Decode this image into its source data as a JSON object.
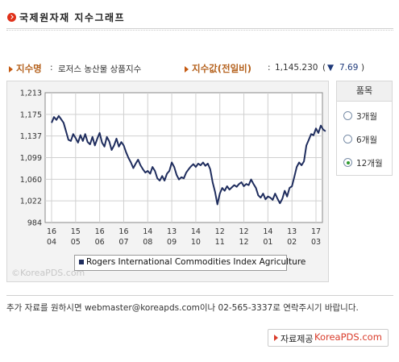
{
  "header": {
    "title": "국제원자재 지수그래프"
  },
  "info": {
    "index_name_label": "지수명",
    "index_name_value": "로저스 농산물 상품지수",
    "index_value_label": "지수값(전일비)",
    "index_value": "1,145.230",
    "change_open": "(",
    "change_arrow": "▼",
    "change_value": "7.69",
    "change_close": ")"
  },
  "chart_data": {
    "type": "line",
    "title": "",
    "xlabel": "",
    "ylabel": "",
    "ylim": [
      984,
      1213
    ],
    "y_ticks": [
      "1,213",
      "1,175",
      "1,137",
      "1,099",
      "1,060",
      "1,022",
      "984"
    ],
    "x_ticks": [
      {
        "day": "16",
        "month": "04"
      },
      {
        "day": "15",
        "month": "05"
      },
      {
        "day": "16",
        "month": "06"
      },
      {
        "day": "16",
        "month": "07"
      },
      {
        "day": "14",
        "month": "08"
      },
      {
        "day": "13",
        "month": "09"
      },
      {
        "day": "14",
        "month": "10"
      },
      {
        "day": "12",
        "month": "11"
      },
      {
        "day": "12",
        "month": "12"
      },
      {
        "day": "14",
        "month": "01"
      },
      {
        "day": "13",
        "month": "02"
      },
      {
        "day": "17",
        "month": "03"
      }
    ],
    "grid": true,
    "legend_position": "bottom",
    "series": [
      {
        "name": "Rogers International Commodities Index Agriculture",
        "color": "#1f2d5e",
        "points": [
          [
            0.0,
            1160
          ],
          [
            0.1,
            1170
          ],
          [
            0.2,
            1165
          ],
          [
            0.3,
            1172
          ],
          [
            0.4,
            1166
          ],
          [
            0.5,
            1160
          ],
          [
            0.6,
            1145
          ],
          [
            0.7,
            1130
          ],
          [
            0.8,
            1128
          ],
          [
            0.9,
            1140
          ],
          [
            1.0,
            1133
          ],
          [
            1.1,
            1125
          ],
          [
            1.2,
            1138
          ],
          [
            1.3,
            1128
          ],
          [
            1.4,
            1140
          ],
          [
            1.5,
            1126
          ],
          [
            1.6,
            1122
          ],
          [
            1.7,
            1135
          ],
          [
            1.8,
            1120
          ],
          [
            1.9,
            1132
          ],
          [
            2.0,
            1142
          ],
          [
            2.1,
            1125
          ],
          [
            2.2,
            1118
          ],
          [
            2.3,
            1135
          ],
          [
            2.4,
            1127
          ],
          [
            2.5,
            1112
          ],
          [
            2.6,
            1120
          ],
          [
            2.7,
            1132
          ],
          [
            2.8,
            1118
          ],
          [
            2.9,
            1126
          ],
          [
            3.0,
            1120
          ],
          [
            3.1,
            1108
          ],
          [
            3.2,
            1098
          ],
          [
            3.3,
            1090
          ],
          [
            3.4,
            1080
          ],
          [
            3.5,
            1088
          ],
          [
            3.6,
            1095
          ],
          [
            3.7,
            1085
          ],
          [
            3.8,
            1078
          ],
          [
            3.9,
            1072
          ],
          [
            4.0,
            1075
          ],
          [
            4.1,
            1070
          ],
          [
            4.2,
            1082
          ],
          [
            4.3,
            1075
          ],
          [
            4.4,
            1062
          ],
          [
            4.5,
            1058
          ],
          [
            4.6,
            1066
          ],
          [
            4.7,
            1058
          ],
          [
            4.8,
            1070
          ],
          [
            4.9,
            1075
          ],
          [
            5.0,
            1090
          ],
          [
            5.1,
            1082
          ],
          [
            5.2,
            1068
          ],
          [
            5.3,
            1060
          ],
          [
            5.4,
            1064
          ],
          [
            5.5,
            1062
          ],
          [
            5.6,
            1072
          ],
          [
            5.7,
            1078
          ],
          [
            5.8,
            1083
          ],
          [
            5.9,
            1087
          ],
          [
            6.0,
            1082
          ],
          [
            6.1,
            1088
          ],
          [
            6.2,
            1085
          ],
          [
            6.3,
            1090
          ],
          [
            6.4,
            1084
          ],
          [
            6.5,
            1088
          ],
          [
            6.6,
            1078
          ],
          [
            6.7,
            1055
          ],
          [
            6.8,
            1038
          ],
          [
            6.9,
            1016
          ],
          [
            7.0,
            1035
          ],
          [
            7.1,
            1045
          ],
          [
            7.2,
            1040
          ],
          [
            7.3,
            1048
          ],
          [
            7.4,
            1042
          ],
          [
            7.5,
            1046
          ],
          [
            7.6,
            1050
          ],
          [
            7.7,
            1047
          ],
          [
            7.8,
            1052
          ],
          [
            7.9,
            1055
          ],
          [
            8.0,
            1048
          ],
          [
            8.1,
            1052
          ],
          [
            8.2,
            1050
          ],
          [
            8.3,
            1060
          ],
          [
            8.4,
            1052
          ],
          [
            8.5,
            1045
          ],
          [
            8.6,
            1032
          ],
          [
            8.7,
            1028
          ],
          [
            8.8,
            1035
          ],
          [
            8.9,
            1025
          ],
          [
            9.0,
            1030
          ],
          [
            9.1,
            1028
          ],
          [
            9.2,
            1024
          ],
          [
            9.3,
            1035
          ],
          [
            9.4,
            1026
          ],
          [
            9.5,
            1018
          ],
          [
            9.6,
            1026
          ],
          [
            9.7,
            1040
          ],
          [
            9.8,
            1030
          ],
          [
            9.9,
            1045
          ],
          [
            10.0,
            1048
          ],
          [
            10.1,
            1065
          ],
          [
            10.2,
            1082
          ],
          [
            10.3,
            1090
          ],
          [
            10.4,
            1085
          ],
          [
            10.5,
            1092
          ],
          [
            10.6,
            1120
          ],
          [
            10.7,
            1130
          ],
          [
            10.8,
            1140
          ],
          [
            10.9,
            1138
          ],
          [
            11.0,
            1150
          ],
          [
            11.1,
            1142
          ],
          [
            11.2,
            1155
          ],
          [
            11.3,
            1148
          ],
          [
            11.4,
            1145
          ]
        ]
      }
    ]
  },
  "watermark": "©KoreaPDS.com",
  "period": {
    "header": "품목",
    "options": [
      {
        "label": "3개월",
        "selected": false
      },
      {
        "label": "6개월",
        "selected": false
      },
      {
        "label": "12개월",
        "selected": true
      }
    ]
  },
  "footer": {
    "contact_text": "추가 자료를 원하시면 webmaster@koreapds.com이나 02-565-3337로 연락주시기 바랍니다.",
    "source_label": "자료제공",
    "source_link": "KoreaPDS.com"
  },
  "colors": {
    "accent": "#b5621e",
    "series": "#1f2d5e",
    "header_icon": "#e0311a",
    "radio_selected": "#2f9a2f"
  }
}
